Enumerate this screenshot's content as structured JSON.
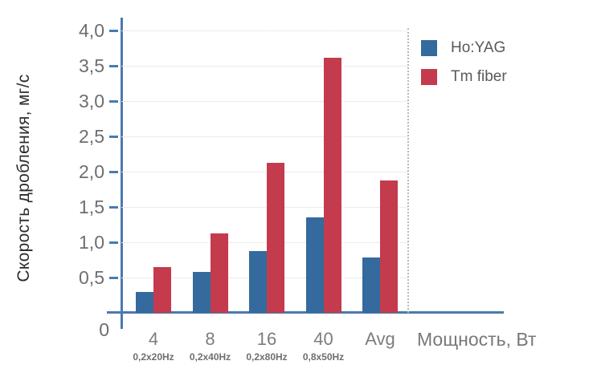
{
  "chart_data": {
    "type": "bar",
    "title": "",
    "ylabel": "Скорость дробления, мг/с",
    "xlabel": "Мощность, Вт",
    "categories": [
      "4",
      "8",
      "16",
      "40",
      "Avg"
    ],
    "category_sublabels": [
      "0,2x20Hz",
      "0,2x40Hz",
      "0,2x80Hz",
      "0,8x50Hz",
      ""
    ],
    "series": [
      {
        "name": "Ho:YAG",
        "color": "#346a9d",
        "values": [
          0.3,
          0.58,
          0.88,
          1.35,
          0.78
        ]
      },
      {
        "name": "Tm fiber",
        "color": "#c33b4d",
        "values": [
          0.65,
          1.12,
          2.12,
          3.61,
          1.88
        ]
      }
    ],
    "ylim": [
      0,
      4.0
    ],
    "yticks": [
      {
        "value": 4.0,
        "label": "4,0"
      },
      {
        "value": 3.5,
        "label": "3,5"
      },
      {
        "value": 3.0,
        "label": "3,0"
      },
      {
        "value": 2.5,
        "label": "2,5"
      },
      {
        "value": 2.0,
        "label": "2,0"
      },
      {
        "value": 1.5,
        "label": "1,5"
      },
      {
        "value": 1.0,
        "label": "1,0"
      },
      {
        "value": 0.5,
        "label": "0,5"
      }
    ],
    "y_zero_label": "0",
    "grid": "horizontal-dotted",
    "legend_position": "outside-top-right",
    "plot_right_boundary": "dotted-vertical-line"
  },
  "colors": {
    "axis": "#4a7aad",
    "grid": "#d9d9d9",
    "boundary_dotted": "#b8b8b8",
    "tick_label": "#6d6e71",
    "category_label": "#7c7d80",
    "sublabel": "#6d6e71",
    "legend_text": "#58595b",
    "x_title": "#77787b",
    "y_title": "#2b2b2b",
    "background": "#ffffff"
  }
}
